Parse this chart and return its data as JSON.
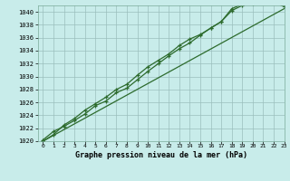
{
  "title": "Graphe pression niveau de la mer (hPa)",
  "bg_color": "#c8ecea",
  "grid_color": "#9bbfbd",
  "line_color": "#2d6b2d",
  "xlim": [
    -0.5,
    23
  ],
  "ylim": [
    1020,
    1041
  ],
  "xticks": [
    0,
    1,
    2,
    3,
    4,
    5,
    6,
    7,
    8,
    9,
    10,
    11,
    12,
    13,
    14,
    15,
    16,
    17,
    18,
    19,
    20,
    21,
    22,
    23
  ],
  "yticks": [
    1020,
    1022,
    1024,
    1026,
    1028,
    1030,
    1032,
    1034,
    1036,
    1038,
    1040
  ],
  "line1_x": [
    0,
    1,
    2,
    3,
    4,
    5,
    6,
    7,
    8,
    9,
    10,
    11,
    12,
    13,
    14,
    15,
    16,
    17,
    18,
    19,
    20,
    21,
    22,
    23
  ],
  "line1_y": [
    1020.2,
    1021.5,
    1022.3,
    1023.2,
    1024.2,
    1025.5,
    1026.2,
    1027.5,
    1028.2,
    1029.5,
    1030.8,
    1032.0,
    1033.2,
    1034.3,
    1035.2,
    1036.4,
    1037.5,
    1038.5,
    1040.5,
    1041.2,
    1041.5,
    1041.8,
    1041.7,
    1041.0
  ],
  "line2_x": [
    0,
    1,
    2,
    3,
    4,
    5,
    6,
    7,
    8,
    9,
    10,
    11,
    12,
    13,
    14,
    15,
    16,
    17,
    18,
    19,
    20,
    21,
    22,
    23
  ],
  "line2_y": [
    1020.0,
    1021.0,
    1022.5,
    1023.5,
    1024.8,
    1025.8,
    1026.8,
    1028.0,
    1028.8,
    1030.2,
    1031.5,
    1032.5,
    1033.5,
    1034.8,
    1035.8,
    1036.5,
    1037.5,
    1038.5,
    1040.2,
    1041.0,
    1041.3,
    1041.7,
    1041.5,
    1040.8
  ],
  "line3_x": [
    0,
    23
  ],
  "line3_y": [
    1020.0,
    1040.5
  ]
}
